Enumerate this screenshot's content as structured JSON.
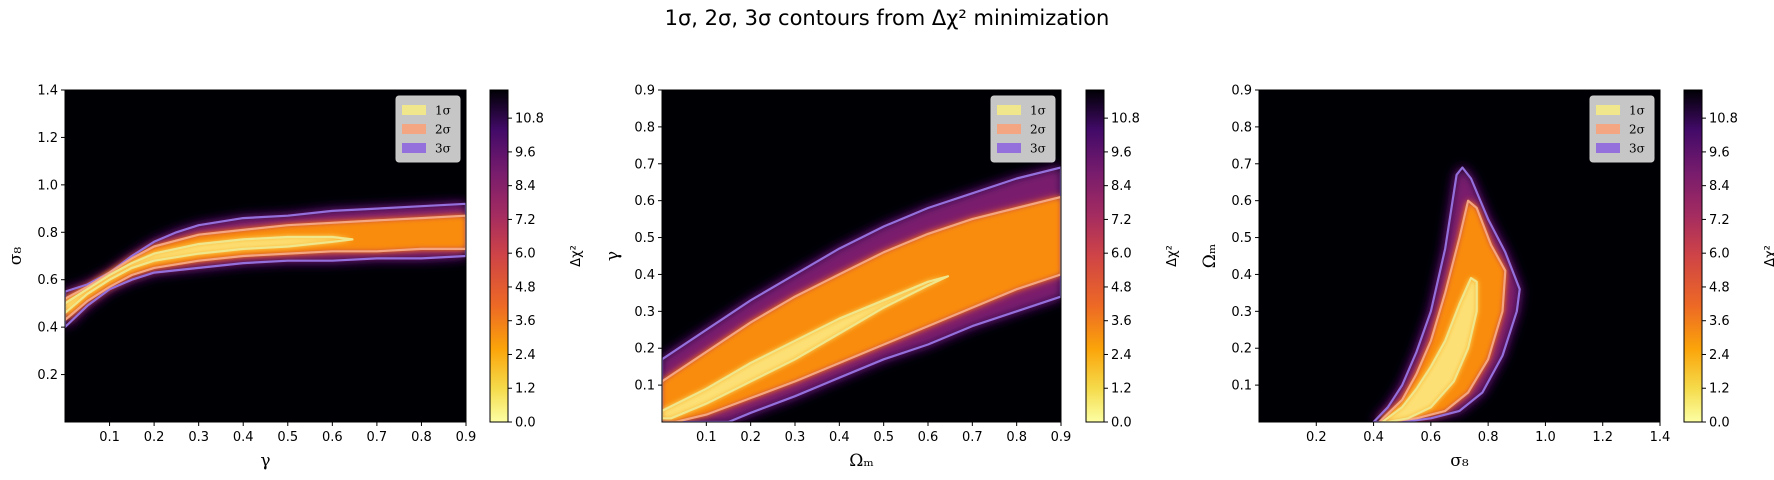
{
  "title": "1σ, 2σ, 3σ contours from Δχ² minimization",
  "colors": {
    "one_sigma": "#f0e68c",
    "two_sigma": "#f4a582",
    "three_sigma": "#9370db",
    "colormap": "inferno_r",
    "background": "#000004"
  },
  "chart_data": [
    {
      "type": "heatmap",
      "xlabel": "γ",
      "ylabel": "σ₈",
      "xlim": [
        0.0,
        0.9
      ],
      "ylim": [
        0.0,
        1.4
      ],
      "xticks": [
        "0.1",
        "0.2",
        "0.3",
        "0.4",
        "0.5",
        "0.6",
        "0.7",
        "0.8",
        "0.9"
      ],
      "yticks": [
        "0.2",
        "0.4",
        "0.6",
        "0.8",
        "1.0",
        "1.2",
        "1.4"
      ],
      "colorbar_label": "Δχ²",
      "colorbar_ticks": [
        "0.0",
        "1.2",
        "2.4",
        "3.6",
        "4.8",
        "6.0",
        "7.2",
        "8.4",
        "9.6",
        "10.8"
      ],
      "colorbar_range": [
        0,
        11.8
      ],
      "legend": [
        "1σ",
        "2σ",
        "3σ"
      ],
      "legend_position": "upper right",
      "contours": [
        {
          "level": "3σ",
          "points": [
            [
              0.0,
              0.4
            ],
            [
              0.05,
              0.49
            ],
            [
              0.1,
              0.56
            ],
            [
              0.15,
              0.6
            ],
            [
              0.2,
              0.63
            ],
            [
              0.3,
              0.65
            ],
            [
              0.4,
              0.67
            ],
            [
              0.5,
              0.68
            ],
            [
              0.6,
              0.68
            ],
            [
              0.7,
              0.69
            ],
            [
              0.8,
              0.69
            ],
            [
              0.9,
              0.7
            ],
            [
              0.9,
              0.92
            ],
            [
              0.8,
              0.91
            ],
            [
              0.7,
              0.9
            ],
            [
              0.6,
              0.89
            ],
            [
              0.5,
              0.87
            ],
            [
              0.4,
              0.86
            ],
            [
              0.3,
              0.83
            ],
            [
              0.25,
              0.8
            ],
            [
              0.2,
              0.76
            ],
            [
              0.15,
              0.7
            ],
            [
              0.1,
              0.63
            ],
            [
              0.05,
              0.58
            ],
            [
              0.0,
              0.55
            ]
          ]
        },
        {
          "level": "2σ",
          "points": [
            [
              0.0,
              0.43
            ],
            [
              0.05,
              0.51
            ],
            [
              0.1,
              0.57
            ],
            [
              0.15,
              0.62
            ],
            [
              0.2,
              0.65
            ],
            [
              0.3,
              0.68
            ],
            [
              0.4,
              0.7
            ],
            [
              0.5,
              0.71
            ],
            [
              0.6,
              0.72
            ],
            [
              0.7,
              0.72
            ],
            [
              0.8,
              0.73
            ],
            [
              0.9,
              0.73
            ],
            [
              0.9,
              0.87
            ],
            [
              0.8,
              0.86
            ],
            [
              0.7,
              0.85
            ],
            [
              0.6,
              0.84
            ],
            [
              0.5,
              0.83
            ],
            [
              0.4,
              0.81
            ],
            [
              0.3,
              0.79
            ],
            [
              0.2,
              0.74
            ],
            [
              0.15,
              0.69
            ],
            [
              0.1,
              0.63
            ],
            [
              0.05,
              0.57
            ],
            [
              0.0,
              0.52
            ]
          ]
        },
        {
          "level": "1σ",
          "points": [
            [
              0.0,
              0.46
            ],
            [
              0.05,
              0.54
            ],
            [
              0.1,
              0.6
            ],
            [
              0.15,
              0.65
            ],
            [
              0.2,
              0.68
            ],
            [
              0.3,
              0.71
            ],
            [
              0.4,
              0.73
            ],
            [
              0.5,
              0.74
            ],
            [
              0.6,
              0.76
            ],
            [
              0.645,
              0.77
            ],
            [
              0.6,
              0.78
            ],
            [
              0.5,
              0.78
            ],
            [
              0.4,
              0.77
            ],
            [
              0.3,
              0.75
            ],
            [
              0.2,
              0.71
            ],
            [
              0.15,
              0.67
            ],
            [
              0.1,
              0.62
            ],
            [
              0.05,
              0.56
            ],
            [
              0.0,
              0.5
            ]
          ]
        }
      ]
    },
    {
      "type": "heatmap",
      "xlabel": "Ωₘ",
      "ylabel": "γ",
      "xlim": [
        0.0,
        0.9
      ],
      "ylim": [
        0.0,
        0.9
      ],
      "xticks": [
        "0.1",
        "0.2",
        "0.3",
        "0.4",
        "0.5",
        "0.6",
        "0.7",
        "0.8",
        "0.9"
      ],
      "yticks": [
        "0.1",
        "0.2",
        "0.3",
        "0.4",
        "0.5",
        "0.6",
        "0.7",
        "0.8",
        "0.9"
      ],
      "colorbar_label": "Δχ²",
      "colorbar_ticks": [
        "0.0",
        "1.2",
        "2.4",
        "3.6",
        "4.8",
        "6.0",
        "7.2",
        "8.4",
        "9.6",
        "10.8"
      ],
      "colorbar_range": [
        0,
        11.8
      ],
      "legend": [
        "1σ",
        "2σ",
        "3σ"
      ],
      "legend_position": "upper right",
      "contours": [
        {
          "level": "3σ",
          "points": [
            [
              0.0,
              0.17
            ],
            [
              0.1,
              0.25
            ],
            [
              0.2,
              0.33
            ],
            [
              0.3,
              0.4
            ],
            [
              0.4,
              0.47
            ],
            [
              0.5,
              0.53
            ],
            [
              0.6,
              0.58
            ],
            [
              0.7,
              0.62
            ],
            [
              0.8,
              0.66
            ],
            [
              0.9,
              0.69
            ],
            [
              0.9,
              0.34
            ],
            [
              0.8,
              0.3
            ],
            [
              0.7,
              0.26
            ],
            [
              0.6,
              0.21
            ],
            [
              0.5,
              0.17
            ],
            [
              0.4,
              0.12
            ],
            [
              0.3,
              0.07
            ],
            [
              0.2,
              0.025
            ],
            [
              0.15,
              0.0
            ],
            [
              0.0,
              0.0
            ]
          ]
        },
        {
          "level": "2σ",
          "points": [
            [
              0.0,
              0.11
            ],
            [
              0.1,
              0.19
            ],
            [
              0.2,
              0.27
            ],
            [
              0.3,
              0.34
            ],
            [
              0.4,
              0.4
            ],
            [
              0.5,
              0.46
            ],
            [
              0.6,
              0.51
            ],
            [
              0.7,
              0.55
            ],
            [
              0.8,
              0.58
            ],
            [
              0.9,
              0.61
            ],
            [
              0.9,
              0.4
            ],
            [
              0.8,
              0.36
            ],
            [
              0.7,
              0.31
            ],
            [
              0.6,
              0.26
            ],
            [
              0.5,
              0.21
            ],
            [
              0.4,
              0.16
            ],
            [
              0.3,
              0.11
            ],
            [
              0.2,
              0.065
            ],
            [
              0.1,
              0.02
            ],
            [
              0.03,
              0.0
            ],
            [
              0.0,
              0.0
            ]
          ]
        },
        {
          "level": "1σ",
          "points": [
            [
              0.0,
              0.03
            ],
            [
              0.1,
              0.09
            ],
            [
              0.2,
              0.16
            ],
            [
              0.3,
              0.22
            ],
            [
              0.4,
              0.28
            ],
            [
              0.5,
              0.33
            ],
            [
              0.6,
              0.38
            ],
            [
              0.645,
              0.395
            ],
            [
              0.6,
              0.37
            ],
            [
              0.5,
              0.31
            ],
            [
              0.4,
              0.24
            ],
            [
              0.3,
              0.17
            ],
            [
              0.2,
              0.11
            ],
            [
              0.1,
              0.05
            ],
            [
              0.02,
              0.01
            ],
            [
              0.0,
              0.01
            ]
          ]
        }
      ]
    },
    {
      "type": "heatmap",
      "xlabel": "σ₈",
      "ylabel": "Ωₘ",
      "xlim": [
        0.0,
        1.4
      ],
      "ylim": [
        0.0,
        0.9
      ],
      "xticks": [
        "0.2",
        "0.4",
        "0.6",
        "0.8",
        "1.0",
        "1.2",
        "1.4"
      ],
      "yticks": [
        "0.1",
        "0.2",
        "0.3",
        "0.4",
        "0.5",
        "0.6",
        "0.7",
        "0.8",
        "0.9"
      ],
      "colorbar_label": "Δχ²",
      "colorbar_ticks": [
        "0.0",
        "1.2",
        "2.4",
        "3.6",
        "4.8",
        "6.0",
        "7.2",
        "8.4",
        "9.6",
        "10.8"
      ],
      "colorbar_range": [
        0,
        11.8
      ],
      "legend": [
        "1σ",
        "2σ",
        "3σ"
      ],
      "legend_position": "upper right",
      "contours": [
        {
          "level": "3σ",
          "points": [
            [
              0.4,
              0.0
            ],
            [
              0.45,
              0.04
            ],
            [
              0.5,
              0.1
            ],
            [
              0.55,
              0.19
            ],
            [
              0.6,
              0.3
            ],
            [
              0.65,
              0.47
            ],
            [
              0.69,
              0.67
            ],
            [
              0.71,
              0.69
            ],
            [
              0.74,
              0.66
            ],
            [
              0.8,
              0.55
            ],
            [
              0.86,
              0.46
            ],
            [
              0.91,
              0.36
            ],
            [
              0.9,
              0.3
            ],
            [
              0.85,
              0.18
            ],
            [
              0.78,
              0.08
            ],
            [
              0.7,
              0.03
            ],
            [
              0.6,
              0.01
            ],
            [
              0.5,
              0.0
            ]
          ]
        },
        {
          "level": "2σ",
          "points": [
            [
              0.42,
              0.0
            ],
            [
              0.5,
              0.06
            ],
            [
              0.55,
              0.13
            ],
            [
              0.6,
              0.22
            ],
            [
              0.65,
              0.35
            ],
            [
              0.7,
              0.5
            ],
            [
              0.73,
              0.6
            ],
            [
              0.76,
              0.58
            ],
            [
              0.81,
              0.48
            ],
            [
              0.86,
              0.41
            ],
            [
              0.85,
              0.3
            ],
            [
              0.8,
              0.17
            ],
            [
              0.73,
              0.08
            ],
            [
              0.65,
              0.03
            ],
            [
              0.55,
              0.01
            ],
            [
              0.45,
              0.0
            ]
          ]
        },
        {
          "level": "1σ",
          "points": [
            [
              0.43,
              0.0
            ],
            [
              0.5,
              0.04
            ],
            [
              0.55,
              0.09
            ],
            [
              0.6,
              0.15
            ],
            [
              0.65,
              0.22
            ],
            [
              0.7,
              0.32
            ],
            [
              0.74,
              0.39
            ],
            [
              0.76,
              0.38
            ],
            [
              0.76,
              0.3
            ],
            [
              0.73,
              0.2
            ],
            [
              0.68,
              0.11
            ],
            [
              0.6,
              0.04
            ],
            [
              0.52,
              0.01
            ],
            [
              0.45,
              0.0
            ]
          ]
        }
      ]
    }
  ]
}
